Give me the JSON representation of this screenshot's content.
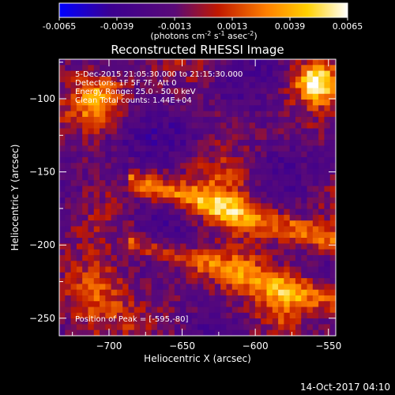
{
  "chart_data": {
    "type": "heatmap",
    "title": "Reconstructed RHESSI Image",
    "colorbar": {
      "ticks": [
        "-0.0065",
        "-0.0039",
        "-0.0013",
        "0.0013",
        "0.0039",
        "0.0065"
      ],
      "range": [
        -0.0065,
        0.0065
      ],
      "colormap": [
        "#0000ff",
        "#3c0090",
        "#5a0a78",
        "#c01800",
        "#ff8000",
        "#ffd000",
        "#ffffff"
      ],
      "unit_parts": {
        "prefix": "(photons cm",
        "exp1": "-2",
        "mid1": " s",
        "exp2": "-1",
        "mid2": " asec",
        "exp3": "-2",
        "suffix": ")"
      }
    },
    "info_lines": [
      "5-Dec-2015 21:05:30.000 to 21:15:30.000",
      "Detectors: 1F 5F 7F, Att 0",
      "Energy Range: 25.0 - 50.0 keV",
      "Clean    Total counts: 1.44E+04"
    ],
    "peak_label": "Position of Peak = [-595,-80]",
    "peak_position": [
      -595,
      -80
    ],
    "xlabel": "Heliocentric X (arcsec)",
    "ylabel": "Heliocentric Y (arcsec)",
    "xlim": [
      -734,
      -545
    ],
    "ylim": [
      -262,
      -73
    ],
    "x_ticks": [
      {
        "value": -700,
        "label": "−700"
      },
      {
        "value": -650,
        "label": "−650"
      },
      {
        "value": -600,
        "label": "−600"
      },
      {
        "value": -550,
        "label": "−550"
      }
    ],
    "y_ticks": [
      {
        "value": -100,
        "label": "−100"
      },
      {
        "value": -150,
        "label": "−150"
      },
      {
        "value": -200,
        "label": "−200"
      },
      {
        "value": -250,
        "label": "−250"
      }
    ],
    "grid": false
  },
  "footer": {
    "date": "14-Oct-2017 04:10"
  }
}
